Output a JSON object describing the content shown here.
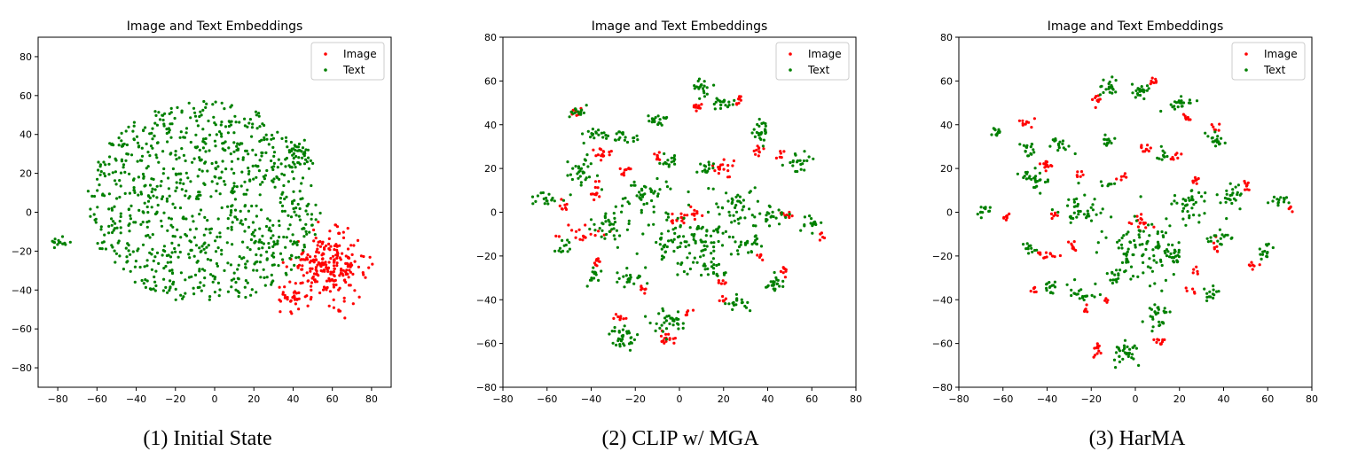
{
  "chart_data": [
    {
      "type": "scatter",
      "title": "Image and Text Embeddings",
      "caption": "(1) Initial State",
      "xlim": [
        -90,
        90
      ],
      "ylim": [
        -90,
        90
      ],
      "xticks": [
        -80,
        -60,
        -40,
        -20,
        0,
        20,
        40,
        60,
        80
      ],
      "yticks": [
        -80,
        -60,
        -40,
        -20,
        0,
        20,
        40,
        60,
        80
      ],
      "legend_position": "top-right",
      "series": [
        {
          "name": "Image",
          "color": "#ff0000",
          "clusters": [
            {
              "cx": 58,
              "cy": -28,
              "rx": 16,
              "ry": 14,
              "n": 240
            },
            {
              "cx": 38,
              "cy": -45,
              "rx": 6,
              "ry": 5,
              "n": 25
            }
          ]
        },
        {
          "name": "Text",
          "color": "#008000",
          "clusters": [
            {
              "cx": -5,
              "cy": 5,
              "rx": 60,
              "ry": 52,
              "n": 900
            },
            {
              "cx": -78,
              "cy": -15,
              "rx": 5,
              "ry": 4,
              "n": 15
            },
            {
              "cx": 42,
              "cy": 30,
              "rx": 6,
              "ry": 6,
              "n": 30
            }
          ]
        }
      ]
    },
    {
      "type": "scatter",
      "title": "Image and Text Embeddings",
      "caption": "(2) CLIP w/ MGA",
      "xlim": [
        -80,
        80
      ],
      "ylim": [
        -80,
        80
      ],
      "xticks": [
        -80,
        -60,
        -40,
        -20,
        0,
        20,
        40,
        60,
        80
      ],
      "yticks": [
        -80,
        -60,
        -40,
        -20,
        0,
        20,
        40,
        60,
        80
      ],
      "legend_position": "top-right",
      "series": [
        {
          "name": "Image",
          "color": "#ff0000",
          "clusters": [
            {
              "cx": -47,
              "cy": 46,
              "rx": 2,
              "ry": 1.5,
              "n": 8
            },
            {
              "cx": -35,
              "cy": 27,
              "rx": 3,
              "ry": 3,
              "n": 15
            },
            {
              "cx": -38,
              "cy": 10,
              "rx": 2,
              "ry": 4,
              "n": 12
            },
            {
              "cx": -24,
              "cy": 19,
              "rx": 3,
              "ry": 1.5,
              "n": 10
            },
            {
              "cx": -52,
              "cy": 3,
              "rx": 1.5,
              "ry": 3,
              "n": 8
            },
            {
              "cx": -42,
              "cy": -10,
              "rx": 8,
              "ry": 3,
              "n": 20
            },
            {
              "cx": -37,
              "cy": -23,
              "rx": 2,
              "ry": 1.5,
              "n": 8
            },
            {
              "cx": -27,
              "cy": -48,
              "rx": 2,
              "ry": 2,
              "n": 8
            },
            {
              "cx": -17,
              "cy": -35,
              "rx": 2,
              "ry": 1.5,
              "n": 7
            },
            {
              "cx": -10,
              "cy": 26,
              "rx": 2,
              "ry": 2,
              "n": 8
            },
            {
              "cx": -6,
              "cy": -58,
              "rx": 3,
              "ry": 2,
              "n": 15
            },
            {
              "cx": 4,
              "cy": -46,
              "rx": 1.5,
              "ry": 1.5,
              "n": 5
            },
            {
              "cx": 0,
              "cy": -3,
              "rx": 4,
              "ry": 2,
              "n": 14
            },
            {
              "cx": 7,
              "cy": 0,
              "rx": 3,
              "ry": 3,
              "n": 10
            },
            {
              "cx": 8,
              "cy": 48,
              "rx": 2,
              "ry": 2,
              "n": 10
            },
            {
              "cx": 20,
              "cy": 20,
              "rx": 4,
              "ry": 4,
              "n": 18
            },
            {
              "cx": 27,
              "cy": 51,
              "rx": 2,
              "ry": 2,
              "n": 9
            },
            {
              "cx": 36,
              "cy": 29,
              "rx": 2,
              "ry": 3,
              "n": 10
            },
            {
              "cx": 46,
              "cy": 26,
              "rx": 2,
              "ry": 1.5,
              "n": 6
            },
            {
              "cx": 49,
              "cy": -1,
              "rx": 2,
              "ry": 3,
              "n": 8
            },
            {
              "cx": 47,
              "cy": -26,
              "rx": 2,
              "ry": 2,
              "n": 8
            },
            {
              "cx": 36,
              "cy": -20,
              "rx": 2,
              "ry": 2,
              "n": 6
            },
            {
              "cx": 19,
              "cy": -32,
              "rx": 2,
              "ry": 1.5,
              "n": 6
            },
            {
              "cx": 20,
              "cy": -40,
              "rx": 2,
              "ry": 1.5,
              "n": 6
            },
            {
              "cx": 64,
              "cy": -11,
              "rx": 1.5,
              "ry": 1.5,
              "n": 5
            }
          ]
        },
        {
          "name": "Text",
          "color": "#008000",
          "clusters": [
            {
              "cx": -47,
              "cy": 46,
              "rx": 4,
              "ry": 2,
              "n": 15
            },
            {
              "cx": -38,
              "cy": 36,
              "rx": 6,
              "ry": 3,
              "n": 20
            },
            {
              "cx": -25,
              "cy": 35,
              "rx": 5,
              "ry": 3,
              "n": 18
            },
            {
              "cx": -10,
              "cy": 42,
              "rx": 4,
              "ry": 3,
              "n": 20
            },
            {
              "cx": -45,
              "cy": 18,
              "rx": 6,
              "ry": 6,
              "n": 30
            },
            {
              "cx": -60,
              "cy": 6,
              "rx": 4,
              "ry": 3,
              "n": 18
            },
            {
              "cx": -52,
              "cy": -15,
              "rx": 3,
              "ry": 3,
              "n": 12
            },
            {
              "cx": -32,
              "cy": -7,
              "rx": 7,
              "ry": 6,
              "n": 35
            },
            {
              "cx": -38,
              "cy": -30,
              "rx": 3,
              "ry": 3,
              "n": 14
            },
            {
              "cx": -22,
              "cy": -30,
              "rx": 6,
              "ry": 3,
              "n": 20
            },
            {
              "cx": -25,
              "cy": -57,
              "rx": 6,
              "ry": 5,
              "n": 35
            },
            {
              "cx": -5,
              "cy": -50,
              "rx": 7,
              "ry": 6,
              "n": 35
            },
            {
              "cx": 5,
              "cy": -14,
              "rx": 18,
              "ry": 12,
              "n": 120
            },
            {
              "cx": -15,
              "cy": 10,
              "rx": 10,
              "ry": 8,
              "n": 45
            },
            {
              "cx": -5,
              "cy": 24,
              "rx": 4,
              "ry": 3,
              "n": 14
            },
            {
              "cx": 12,
              "cy": 20,
              "rx": 3,
              "ry": 3,
              "n": 15
            },
            {
              "cx": 10,
              "cy": 57,
              "rx": 4,
              "ry": 3,
              "n": 20
            },
            {
              "cx": 20,
              "cy": 49,
              "rx": 4,
              "ry": 3,
              "n": 20
            },
            {
              "cx": 37,
              "cy": 37,
              "rx": 5,
              "ry": 4,
              "n": 25
            },
            {
              "cx": 55,
              "cy": 23,
              "rx": 4,
              "ry": 4,
              "n": 22
            },
            {
              "cx": 25,
              "cy": 2,
              "rx": 8,
              "ry": 8,
              "n": 40
            },
            {
              "cx": 42,
              "cy": -2,
              "rx": 5,
              "ry": 5,
              "n": 22
            },
            {
              "cx": 60,
              "cy": -5,
              "rx": 4,
              "ry": 3,
              "n": 16
            },
            {
              "cx": 32,
              "cy": -15,
              "rx": 5,
              "ry": 4,
              "n": 20
            },
            {
              "cx": 43,
              "cy": -32,
              "rx": 4,
              "ry": 4,
              "n": 22
            },
            {
              "cx": 26,
              "cy": -42,
              "rx": 4,
              "ry": 3,
              "n": 18
            },
            {
              "cx": 15,
              "cy": -26,
              "rx": 5,
              "ry": 3,
              "n": 18
            }
          ]
        }
      ]
    },
    {
      "type": "scatter",
      "title": "Image and Text Embeddings",
      "caption": "(3) HarMA",
      "xlim": [
        -80,
        80
      ],
      "ylim": [
        -80,
        80
      ],
      "xticks": [
        -80,
        -60,
        -40,
        -20,
        0,
        20,
        40,
        60,
        80
      ],
      "yticks": [
        -80,
        -60,
        -40,
        -20,
        0,
        20,
        40,
        60,
        80
      ],
      "legend_position": "top-right",
      "series": [
        {
          "name": "Image",
          "color": "#ff0000",
          "clusters": [
            {
              "cx": -50,
              "cy": 40,
              "rx": 3,
              "ry": 2,
              "n": 10
            },
            {
              "cx": -40,
              "cy": 22,
              "rx": 2,
              "ry": 4,
              "n": 14
            },
            {
              "cx": -40,
              "cy": -19,
              "rx": 5,
              "ry": 1.5,
              "n": 14
            },
            {
              "cx": -37,
              "cy": -2,
              "rx": 2,
              "ry": 2,
              "n": 6
            },
            {
              "cx": -46,
              "cy": -35,
              "rx": 1.5,
              "ry": 2,
              "n": 6
            },
            {
              "cx": -58,
              "cy": -2,
              "rx": 2,
              "ry": 2,
              "n": 7
            },
            {
              "cx": -18,
              "cy": 51,
              "rx": 2,
              "ry": 2,
              "n": 10
            },
            {
              "cx": -28,
              "cy": -15,
              "rx": 3,
              "ry": 2,
              "n": 8
            },
            {
              "cx": -17,
              "cy": -62,
              "rx": 2,
              "ry": 4,
              "n": 12
            },
            {
              "cx": -22,
              "cy": -45,
              "rx": 2,
              "ry": 1.5,
              "n": 6
            },
            {
              "cx": -25,
              "cy": 17,
              "rx": 2,
              "ry": 2,
              "n": 6
            },
            {
              "cx": 5,
              "cy": 29,
              "rx": 3,
              "ry": 2,
              "n": 10
            },
            {
              "cx": 8,
              "cy": 60,
              "rx": 2,
              "ry": 1.5,
              "n": 8
            },
            {
              "cx": 11,
              "cy": -59,
              "rx": 2,
              "ry": 2,
              "n": 10
            },
            {
              "cx": 2,
              "cy": -5,
              "rx": 5,
              "ry": 3,
              "n": 16
            },
            {
              "cx": -6,
              "cy": 16,
              "rx": 2,
              "ry": 2,
              "n": 6
            },
            {
              "cx": 18,
              "cy": 26,
              "rx": 2,
              "ry": 2,
              "n": 7
            },
            {
              "cx": 23,
              "cy": 43,
              "rx": 2,
              "ry": 2,
              "n": 7
            },
            {
              "cx": 27,
              "cy": 15,
              "rx": 2,
              "ry": 2,
              "n": 8
            },
            {
              "cx": 37,
              "cy": 39,
              "rx": 2,
              "ry": 1.5,
              "n": 6
            },
            {
              "cx": 36,
              "cy": -16,
              "rx": 2,
              "ry": 3,
              "n": 7
            },
            {
              "cx": 50,
              "cy": 12,
              "rx": 2,
              "ry": 3,
              "n": 8
            },
            {
              "cx": 53,
              "cy": -24,
              "rx": 2,
              "ry": 1.5,
              "n": 7
            },
            {
              "cx": 27,
              "cy": -27,
              "rx": 1.5,
              "ry": 1.5,
              "n": 5
            },
            {
              "cx": 25,
              "cy": -36,
              "rx": 1.5,
              "ry": 1.5,
              "n": 5
            },
            {
              "cx": 70,
              "cy": 1,
              "rx": 1.5,
              "ry": 1.5,
              "n": 5
            },
            {
              "cx": -12,
              "cy": -40,
              "rx": 1.5,
              "ry": 1.5,
              "n": 4
            }
          ]
        },
        {
          "name": "Text",
          "color": "#008000",
          "clusters": [
            {
              "cx": -62,
              "cy": 37,
              "rx": 3,
              "ry": 2,
              "n": 12
            },
            {
              "cx": -48,
              "cy": 28,
              "rx": 4,
              "ry": 3,
              "n": 16
            },
            {
              "cx": -35,
              "cy": 31,
              "rx": 4,
              "ry": 3,
              "n": 16
            },
            {
              "cx": -45,
              "cy": 15,
              "rx": 5,
              "ry": 5,
              "n": 28
            },
            {
              "cx": -68,
              "cy": 1,
              "rx": 3,
              "ry": 2,
              "n": 12
            },
            {
              "cx": -48,
              "cy": -17,
              "rx": 3,
              "ry": 3,
              "n": 12
            },
            {
              "cx": -38,
              "cy": -35,
              "rx": 3,
              "ry": 3,
              "n": 14
            },
            {
              "cx": -25,
              "cy": 0,
              "rx": 8,
              "ry": 7,
              "n": 40
            },
            {
              "cx": -25,
              "cy": -38,
              "rx": 5,
              "ry": 3,
              "n": 18
            },
            {
              "cx": -12,
              "cy": 57,
              "rx": 4,
              "ry": 3,
              "n": 20
            },
            {
              "cx": 2,
              "cy": 55,
              "rx": 4,
              "ry": 3,
              "n": 20
            },
            {
              "cx": -13,
              "cy": 32,
              "rx": 3,
              "ry": 3,
              "n": 14
            },
            {
              "cx": -12,
              "cy": 13,
              "rx": 2,
              "ry": 2,
              "n": 8
            },
            {
              "cx": 12,
              "cy": 25,
              "rx": 2,
              "ry": 3,
              "n": 10
            },
            {
              "cx": 20,
              "cy": 50,
              "rx": 5,
              "ry": 3,
              "n": 22
            },
            {
              "cx": 37,
              "cy": 33,
              "rx": 4,
              "ry": 3,
              "n": 18
            },
            {
              "cx": 25,
              "cy": 5,
              "rx": 8,
              "ry": 8,
              "n": 38
            },
            {
              "cx": 43,
              "cy": 7,
              "rx": 5,
              "ry": 5,
              "n": 24
            },
            {
              "cx": 65,
              "cy": 5,
              "rx": 4,
              "ry": 2,
              "n": 14
            },
            {
              "cx": 38,
              "cy": -12,
              "rx": 4,
              "ry": 4,
              "n": 16
            },
            {
              "cx": 60,
              "cy": -18,
              "rx": 3,
              "ry": 3,
              "n": 14
            },
            {
              "cx": 35,
              "cy": -37,
              "rx": 3,
              "ry": 3,
              "n": 14
            },
            {
              "cx": 5,
              "cy": -17,
              "rx": 16,
              "ry": 12,
              "n": 110
            },
            {
              "cx": 18,
              "cy": -20,
              "rx": 3,
              "ry": 3,
              "n": 12
            },
            {
              "cx": -5,
              "cy": -65,
              "rx": 6,
              "ry": 5,
              "n": 32
            },
            {
              "cx": 10,
              "cy": -48,
              "rx": 5,
              "ry": 6,
              "n": 28
            },
            {
              "cx": -10,
              "cy": -30,
              "rx": 5,
              "ry": 3,
              "n": 16
            }
          ]
        }
      ]
    }
  ]
}
